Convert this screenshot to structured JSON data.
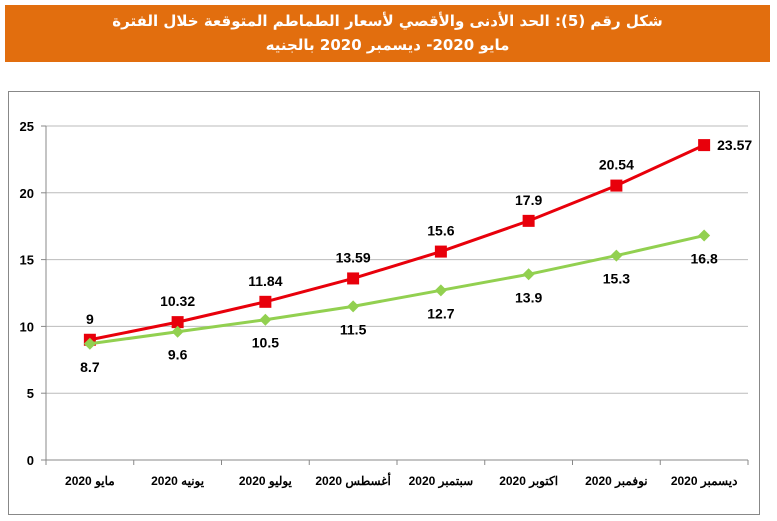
{
  "chart_data": {
    "type": "line",
    "title_line1": "شكل رقم (5): الحد الأدنى والأقصي لأسعار الطماطم المتوقعة خلال الفترة",
    "title_line2": "مايو 2020- ديسمبر 2020 بالجنيه",
    "categories": [
      "مايو 2020",
      "يونيه 2020",
      "يوليو 2020",
      "أغسطس 2020",
      "سبتمبر 2020",
      "اكتوبر 2020",
      "نوفمبر 2020",
      "ديسمبر 2020"
    ],
    "ylim": [
      0,
      25
    ],
    "yticks": [
      0,
      5,
      10,
      15,
      20,
      25
    ],
    "grid": true,
    "series": [
      {
        "values": [
          9,
          10.32,
          11.84,
          13.59,
          15.6,
          17.9,
          20.54,
          23.57
        ],
        "color": "#E8000B",
        "marker": "square",
        "label_position": "above"
      },
      {
        "values": [
          8.7,
          9.6,
          10.5,
          11.5,
          12.7,
          13.9,
          15.3,
          16.8
        ],
        "color": "#92D050",
        "marker": "diamond",
        "label_position": "below"
      }
    ]
  }
}
